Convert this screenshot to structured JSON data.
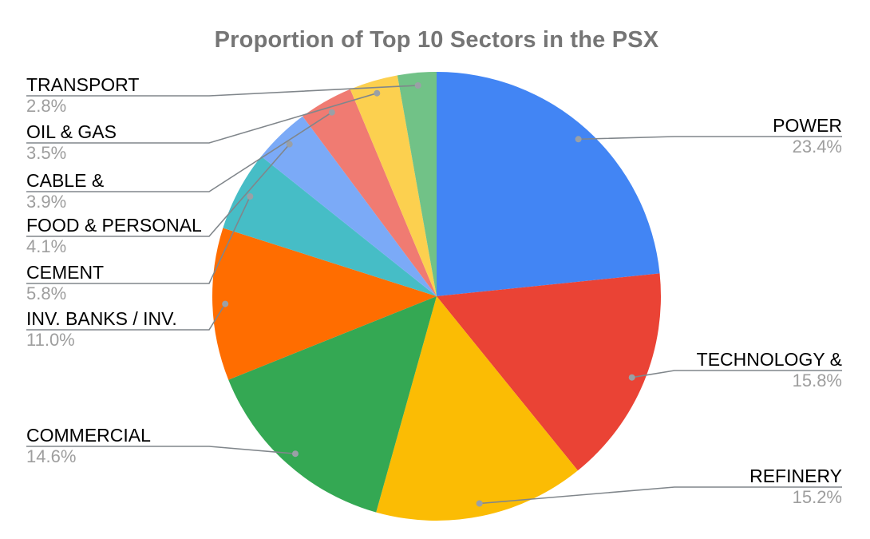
{
  "page": {
    "background": "#ffffff"
  },
  "chart_data": {
    "type": "pie",
    "title": "Proportion of Top 10 Sectors in the PSX",
    "legend_position": "outside-callout-labels",
    "grid": false,
    "label_format": "name + percent",
    "slices": [
      {
        "label": "POWER",
        "value": 23.4,
        "pct_label": "23.4%",
        "color": "#4285F4"
      },
      {
        "label": "TECHNOLOGY &",
        "value": 15.8,
        "pct_label": "15.8%",
        "color": "#EA4335"
      },
      {
        "label": "REFINERY",
        "value": 15.2,
        "pct_label": "15.2%",
        "color": "#FBBC04"
      },
      {
        "label": "COMMERCIAL",
        "value": 14.6,
        "pct_label": "14.6%",
        "color": "#34A853"
      },
      {
        "label": "INV. BANKS / INV.",
        "value": 11.0,
        "pct_label": "11.0%",
        "color": "#FF6D00"
      },
      {
        "label": "CEMENT",
        "value": 5.8,
        "pct_label": "5.8%",
        "color": "#46BDC6"
      },
      {
        "label": "FOOD & PERSONAL",
        "value": 4.1,
        "pct_label": "4.1%",
        "color": "#7BAAF7"
      },
      {
        "label": "CABLE &",
        "value": 3.9,
        "pct_label": "3.9%",
        "color": "#F07B72"
      },
      {
        "label": "OIL & GAS",
        "value": 3.5,
        "pct_label": "3.5%",
        "color": "#FCD04F"
      },
      {
        "label": "TRANSPORT",
        "value": 2.8,
        "pct_label": "2.8%",
        "color": "#71C287"
      }
    ],
    "styles": {
      "title_color": "#757575",
      "label_color": "#000000",
      "percent_color": "#9e9e9e",
      "callout_line_color": "#80868b",
      "callout_dot_color": "#9aa0a6"
    }
  }
}
